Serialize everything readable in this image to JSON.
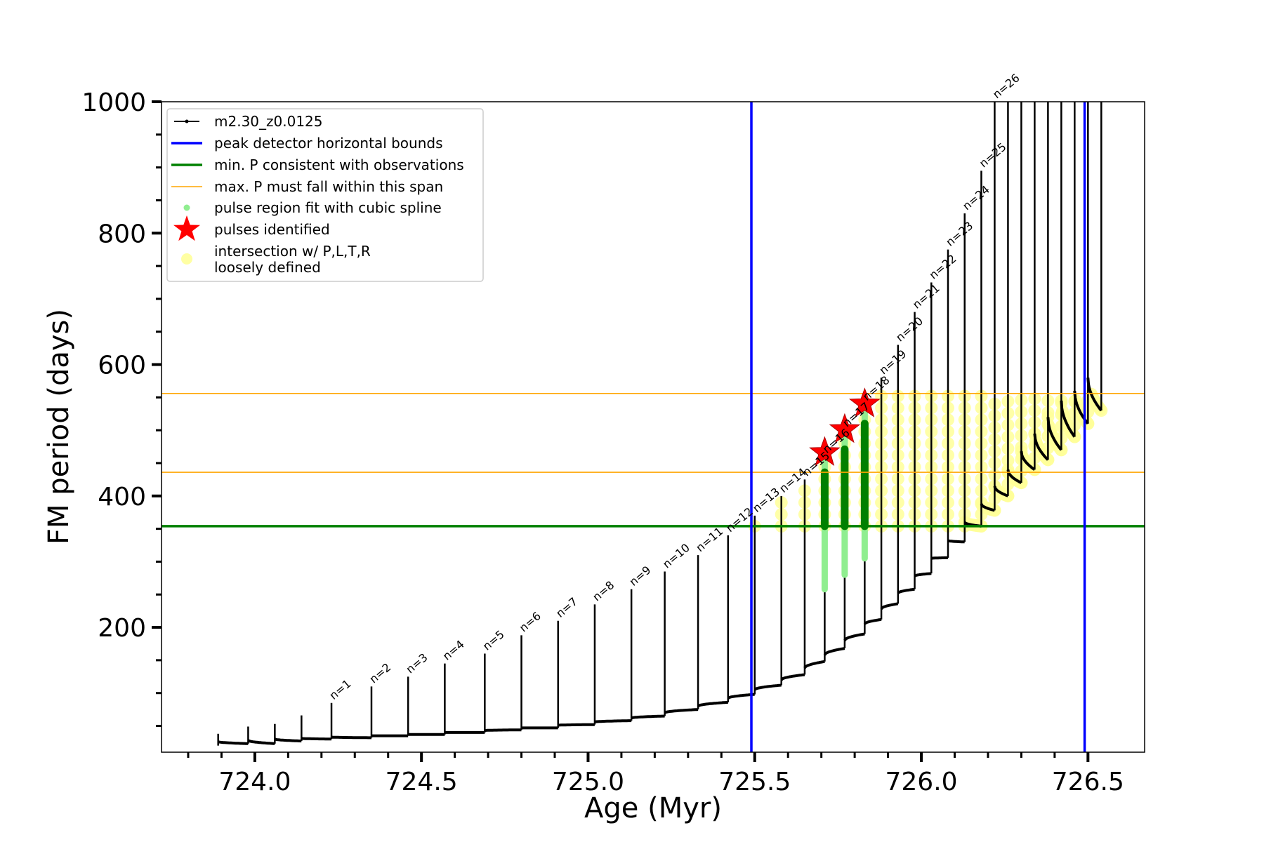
{
  "chart_data": {
    "type": "line",
    "title": "",
    "xlabel": "Age (Myr)",
    "ylabel": "FM period (days)",
    "xlim": [
      723.72,
      726.67
    ],
    "ylim": [
      10,
      1000
    ],
    "x_ticks": [
      "724.0",
      "724.5",
      "725.0",
      "725.5",
      "726.0",
      "726.5"
    ],
    "y_ticks": [
      "200",
      "400",
      "600",
      "800",
      "1000"
    ],
    "legend": {
      "placement": "top-left",
      "entries": [
        {
          "key": "model",
          "label": "m2.30_z0.0125",
          "color": "#000000"
        },
        {
          "key": "vlines",
          "label": "peak detector horizontal bounds",
          "color": "#0000ff"
        },
        {
          "key": "minp",
          "label": "min. P consistent with observations",
          "color": "#008000"
        },
        {
          "key": "maxp",
          "label": "max. P must fall within this span",
          "color": "#ffa500"
        },
        {
          "key": "spline",
          "label": "pulse region fit with cubic spline",
          "color": "#90ee90"
        },
        {
          "key": "pulses",
          "label": "pulses identified",
          "color": "#ff0000"
        },
        {
          "key": "intersect",
          "label": "intersection w/ P,L,T,R\nloosely defined",
          "color": "#ffff99"
        }
      ]
    },
    "vertical_lines": {
      "label": "peak detector horizontal bounds",
      "x": [
        725.49,
        726.49
      ],
      "color": "#0000ff"
    },
    "min_period_line": {
      "label": "min. P consistent with observations",
      "y": 354,
      "color": "#008000"
    },
    "max_period_span": {
      "label": "max. P must fall within this span",
      "y": [
        436,
        556
      ],
      "color": "#ffa500"
    },
    "series": {
      "name": "m2.30_z0.0125",
      "pulses": [
        {
          "n": "",
          "age": 723.89,
          "base": 20,
          "top": 38,
          "post": 26
        },
        {
          "n": "",
          "age": 723.98,
          "base": 23,
          "top": 49,
          "post": 28
        },
        {
          "n": "",
          "age": 724.06,
          "base": 23,
          "top": 53,
          "post": 30
        },
        {
          "n": "",
          "age": 724.14,
          "base": 27,
          "top": 66,
          "post": 31
        },
        {
          "n": "n=1",
          "age": 724.23,
          "base": 30,
          "top": 85,
          "post": 33
        },
        {
          "n": "n=2",
          "age": 724.35,
          "base": 32,
          "top": 110,
          "post": 35
        },
        {
          "n": "n=3",
          "age": 724.46,
          "base": 35,
          "top": 125,
          "post": 37
        },
        {
          "n": "n=4",
          "age": 724.57,
          "base": 37,
          "top": 145,
          "post": 40
        },
        {
          "n": "n=5",
          "age": 724.69,
          "base": 40,
          "top": 160,
          "post": 43
        },
        {
          "n": "n=6",
          "age": 724.8,
          "base": 44,
          "top": 188,
          "post": 47
        },
        {
          "n": "n=7",
          "age": 724.91,
          "base": 47,
          "top": 210,
          "post": 51
        },
        {
          "n": "n=8",
          "age": 725.02,
          "base": 52,
          "top": 235,
          "post": 56
        },
        {
          "n": "n=9",
          "age": 725.13,
          "base": 58,
          "top": 258,
          "post": 62
        },
        {
          "n": "n=10",
          "age": 725.23,
          "base": 65,
          "top": 285,
          "post": 70
        },
        {
          "n": "n=11",
          "age": 725.33,
          "base": 75,
          "top": 310,
          "post": 80
        },
        {
          "n": "n=12",
          "age": 725.42,
          "base": 86,
          "top": 340,
          "post": 92
        },
        {
          "n": "n=13",
          "age": 725.5,
          "base": 98,
          "top": 370,
          "post": 105
        },
        {
          "n": "n=14",
          "age": 725.58,
          "base": 112,
          "top": 400,
          "post": 120
        },
        {
          "n": "n=15",
          "age": 725.65,
          "base": 128,
          "top": 425,
          "post": 138
        },
        {
          "n": "n=16",
          "age": 725.71,
          "base": 148,
          "top": 460,
          "post": 158
        },
        {
          "n": "n=17",
          "age": 725.77,
          "base": 168,
          "top": 500,
          "post": 180
        },
        {
          "n": "n=18",
          "age": 725.83,
          "base": 190,
          "top": 540,
          "post": 205
        },
        {
          "n": "n=19",
          "age": 725.88,
          "base": 212,
          "top": 580,
          "post": 228
        },
        {
          "n": "n=20",
          "age": 725.93,
          "base": 236,
          "top": 630,
          "post": 252
        },
        {
          "n": "n=21",
          "age": 725.98,
          "base": 258,
          "top": 680,
          "post": 278
        },
        {
          "n": "n=22",
          "age": 726.03,
          "base": 282,
          "top": 725,
          "post": 305
        },
        {
          "n": "n=23",
          "age": 726.08,
          "base": 306,
          "top": 775,
          "post": 332
        },
        {
          "n": "n=24",
          "age": 726.13,
          "base": 330,
          "top": 830,
          "post": 360
        },
        {
          "n": "n=25",
          "age": 726.18,
          "base": 354,
          "top": 895,
          "post": 388
        },
        {
          "n": "n=26",
          "age": 726.22,
          "base": 378,
          "top": 1000,
          "post": 415
        },
        {
          "n": "",
          "age": 726.26,
          "base": 400,
          "top": 1000,
          "post": 440
        },
        {
          "n": "",
          "age": 726.3,
          "base": 420,
          "top": 1000,
          "post": 468
        },
        {
          "n": "",
          "age": 726.34,
          "base": 440,
          "top": 1000,
          "post": 495
        },
        {
          "n": "",
          "age": 726.38,
          "base": 455,
          "top": 1000,
          "post": 520
        },
        {
          "n": "",
          "age": 726.42,
          "base": 470,
          "top": 1000,
          "post": 545
        },
        {
          "n": "",
          "age": 726.46,
          "base": 490,
          "top": 1000,
          "post": 560
        },
        {
          "n": "",
          "age": 726.5,
          "base": 510,
          "top": 1000,
          "post": 580
        },
        {
          "n": "",
          "age": 726.54,
          "base": 530,
          "top": 1000,
          "post": 600
        }
      ]
    },
    "pulses_identified": [
      {
        "age": 725.71,
        "period": 466
      },
      {
        "age": 725.77,
        "period": 501
      },
      {
        "age": 725.83,
        "period": 540
      }
    ]
  }
}
